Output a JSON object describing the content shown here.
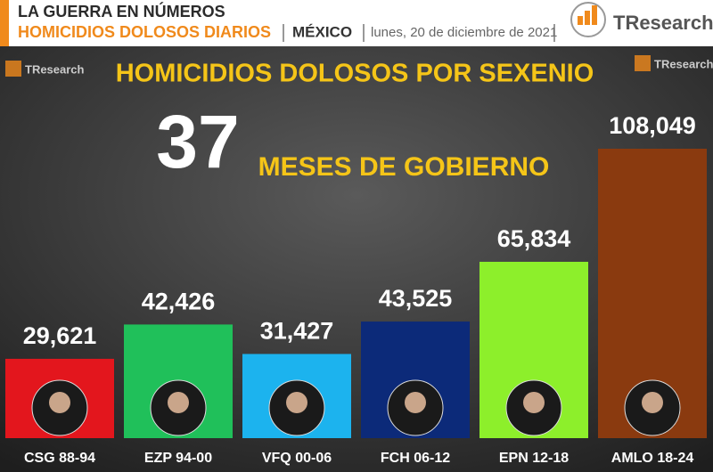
{
  "header": {
    "kicker": "LA GUERRA EN NÚMEROS",
    "subject": "HOMICIDIOS DOLOSOS DIARIOS",
    "country": "MÉXICO",
    "date": "lunes, 20 de diciembre de 2021",
    "logo": "TResearch"
  },
  "chart_data": {
    "type": "bar",
    "title": "HOMICIDIOS DOLOSOS POR SEXENIO",
    "annotation_number": "37",
    "annotation_text": "MESES DE GOBIERNO",
    "categories": [
      "CSG 88-94",
      "EZP 94-00",
      "VFQ 00-06",
      "FCH 06-12",
      "EPN 12-18",
      "AMLO 18-24"
    ],
    "values": [
      29621,
      42426,
      31427,
      43525,
      65834,
      108049
    ],
    "value_labels": [
      "29,621",
      "42,426",
      "31,427",
      "43,525",
      "65,834",
      "108,049"
    ],
    "colors": [
      "#e3161d",
      "#20c05a",
      "#1cb3ee",
      "#0c2a79",
      "#8def2b",
      "#8a3a0f"
    ]
  }
}
